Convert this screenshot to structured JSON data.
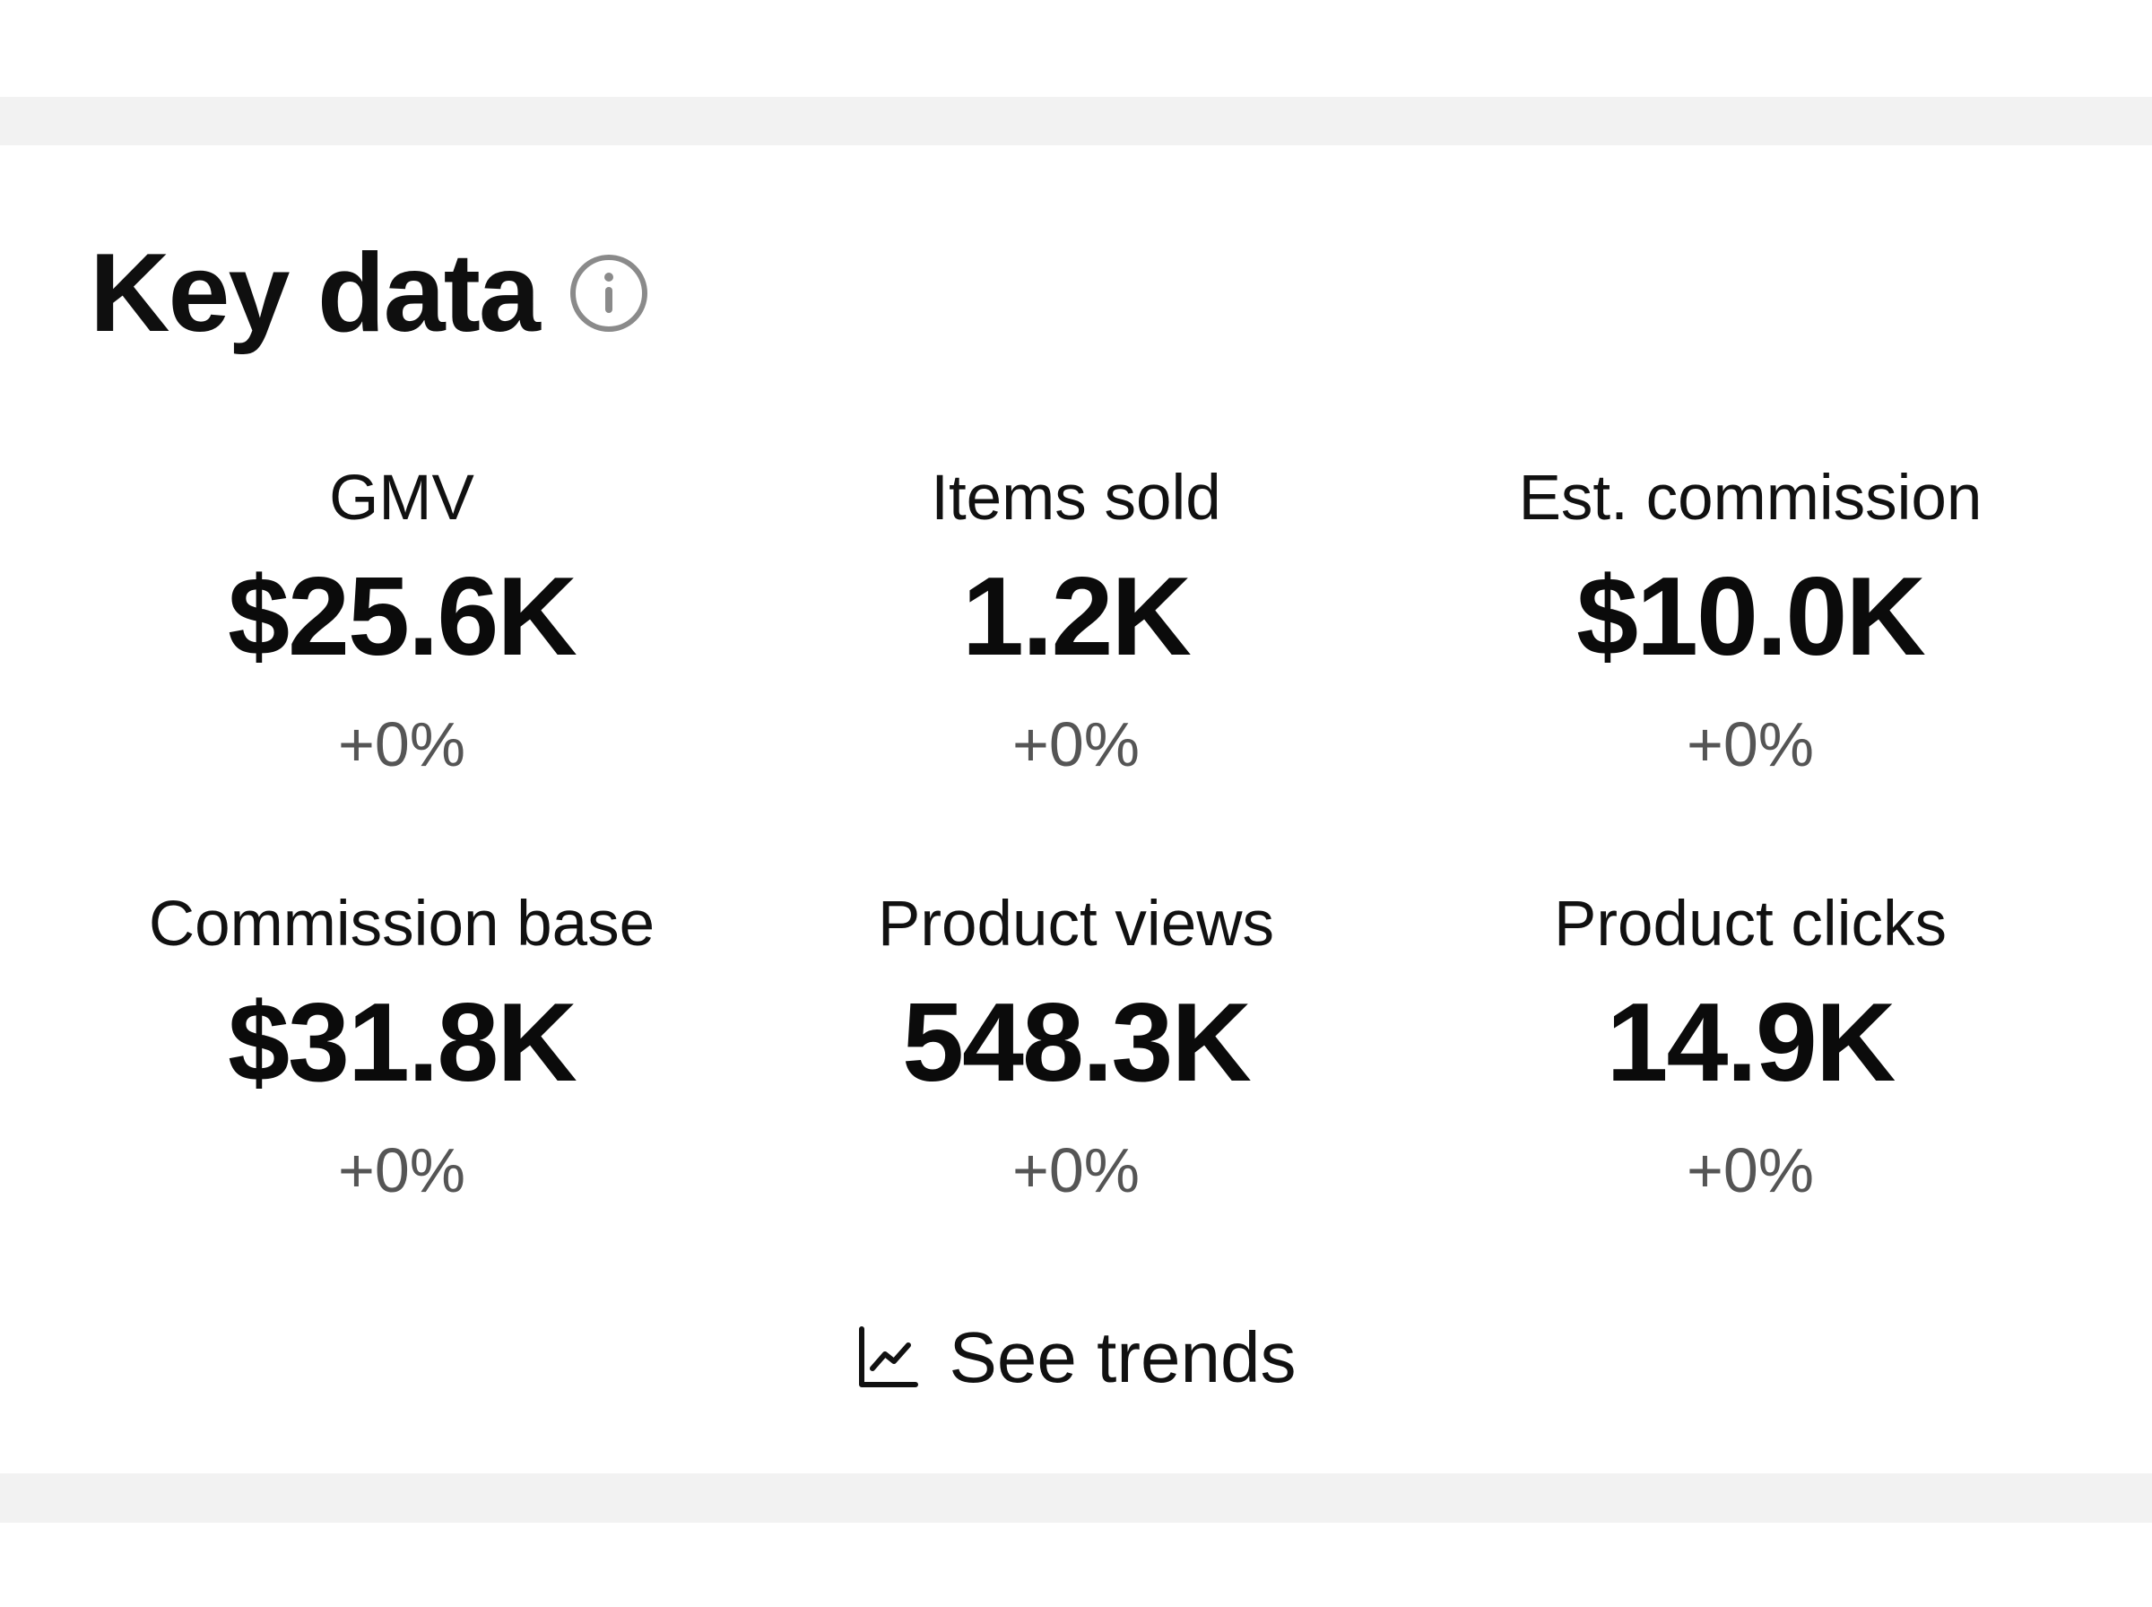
{
  "header": {
    "title": "Key data",
    "info_icon": "info-circle-icon"
  },
  "metrics": [
    {
      "label": "GMV",
      "value": "$25.6K",
      "change": "+0%"
    },
    {
      "label": "Items sold",
      "value": "1.2K",
      "change": "+0%"
    },
    {
      "label": "Est. commission",
      "value": "$10.0K",
      "change": "+0%"
    },
    {
      "label": "Commission base",
      "value": "$31.8K",
      "change": "+0%"
    },
    {
      "label": "Product views",
      "value": "548.3K",
      "change": "+0%"
    },
    {
      "label": "Product clicks",
      "value": "14.9K",
      "change": "+0%"
    }
  ],
  "footer": {
    "see_trends_label": "See trends",
    "trend_icon": "line-chart-icon"
  },
  "colors": {
    "text_primary": "#111111",
    "text_secondary": "#555555",
    "icon_gray": "#8a8a8a",
    "band_gray": "#f2f2f2",
    "background": "#ffffff"
  }
}
